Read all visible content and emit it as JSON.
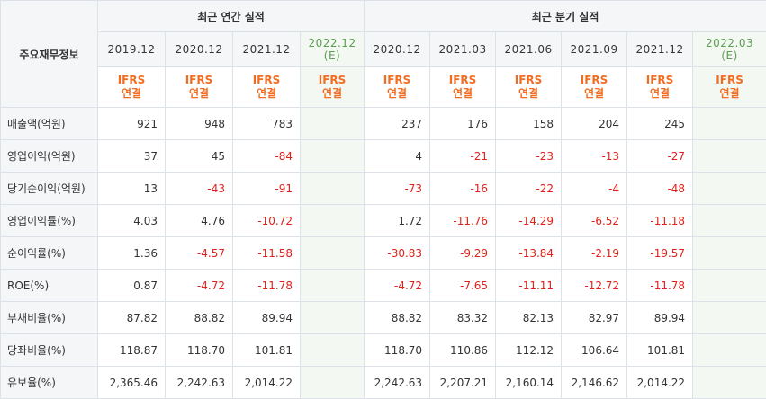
{
  "header": {
    "row_label": "주요재무정보",
    "group_annual": "최근 연간 실적",
    "group_quarterly": "최근 분기 실적",
    "annual_periods": [
      {
        "period": "2019.12",
        "estimate": ""
      },
      {
        "period": "2020.12",
        "estimate": ""
      },
      {
        "period": "2021.12",
        "estimate": ""
      },
      {
        "period": "2022.12",
        "estimate": "(E)"
      }
    ],
    "quarterly_periods": [
      {
        "period": "2020.12",
        "estimate": ""
      },
      {
        "period": "2021.03",
        "estimate": ""
      },
      {
        "period": "2021.06",
        "estimate": ""
      },
      {
        "period": "2021.09",
        "estimate": ""
      },
      {
        "period": "2021.12",
        "estimate": ""
      },
      {
        "period": "2022.03",
        "estimate": "(E)"
      }
    ],
    "ifrs_line1": "IFRS",
    "ifrs_line2": "연결"
  },
  "rows": [
    {
      "label": "매출액(억원)",
      "annual": [
        "921",
        "948",
        "783",
        ""
      ],
      "quarterly": [
        "237",
        "176",
        "158",
        "204",
        "245",
        ""
      ]
    },
    {
      "label": "영업이익(억원)",
      "annual": [
        "37",
        "45",
        "-84",
        ""
      ],
      "quarterly": [
        "4",
        "-21",
        "-23",
        "-13",
        "-27",
        ""
      ]
    },
    {
      "label": "당기순이익(억원)",
      "annual": [
        "13",
        "-43",
        "-91",
        ""
      ],
      "quarterly": [
        "-73",
        "-16",
        "-22",
        "-4",
        "-48",
        ""
      ]
    },
    {
      "label": "영업이익률(%)",
      "annual": [
        "4.03",
        "4.76",
        "-10.72",
        ""
      ],
      "quarterly": [
        "1.72",
        "-11.76",
        "-14.29",
        "-6.52",
        "-11.18",
        ""
      ]
    },
    {
      "label": "순이익률(%)",
      "annual": [
        "1.36",
        "-4.57",
        "-11.58",
        ""
      ],
      "quarterly": [
        "-30.83",
        "-9.29",
        "-13.84",
        "-2.19",
        "-19.57",
        ""
      ]
    },
    {
      "label": "ROE(%)",
      "annual": [
        "0.87",
        "-4.72",
        "-11.78",
        ""
      ],
      "quarterly": [
        "-4.72",
        "-7.65",
        "-11.11",
        "-12.72",
        "-11.78",
        ""
      ]
    },
    {
      "label": "부채비율(%)",
      "annual": [
        "87.82",
        "88.82",
        "89.94",
        ""
      ],
      "quarterly": [
        "88.82",
        "83.32",
        "82.13",
        "82.97",
        "89.94",
        ""
      ]
    },
    {
      "label": "당좌비율(%)",
      "annual": [
        "118.87",
        "118.70",
        "101.81",
        ""
      ],
      "quarterly": [
        "118.70",
        "110.86",
        "112.12",
        "106.64",
        "101.81",
        ""
      ]
    },
    {
      "label": "유보율(%)",
      "annual": [
        "2,365.46",
        "2,242.63",
        "2,014.22",
        ""
      ],
      "quarterly": [
        "2,242.63",
        "2,207.21",
        "2,160.14",
        "2,146.62",
        "2,014.22",
        ""
      ]
    }
  ],
  "colors": {
    "negative": "#e0211b",
    "ifrs": "#f26d21",
    "estimate": "#5a9e4f",
    "header_bg": "#f5f6f8"
  }
}
